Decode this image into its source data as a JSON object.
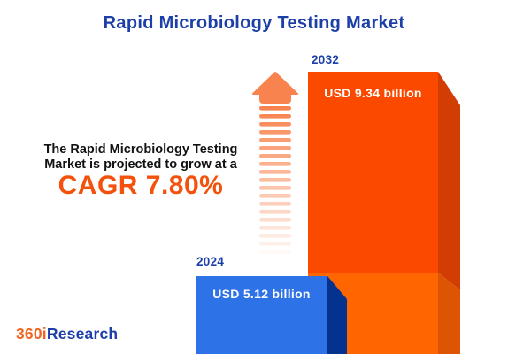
{
  "title": "Rapid Microbiology Testing Market",
  "annotation": {
    "line1": "The Rapid Microbiology Testing",
    "line2": "Market is projected to grow at a",
    "cagr_label": "CAGR 7.80%"
  },
  "chart_data": {
    "type": "bar",
    "title": "Rapid Microbiology Testing Market",
    "categories": [
      "2024",
      "2032"
    ],
    "values": [
      5.12,
      9.34
    ],
    "value_labels": [
      "USD 5.12 billion",
      "USD 9.34 billion"
    ],
    "unit": "USD billion",
    "cagr_percent": 7.8,
    "grid": false,
    "legend_position": "none",
    "colors": {
      "bar_2024_front": "#2e72e8",
      "bar_2024_side": "#05318f",
      "bar_2032_front": "#fb4a00",
      "bar_2032_side": "#d23d03",
      "bar_2032_reflection_front": "#ff6600",
      "bar_2032_reflection_side": "#de5405"
    }
  },
  "arrow": {
    "meaning": "growth-up-arrow",
    "color": "#f8834e"
  },
  "logo": {
    "part1": "360i",
    "part2": "Research"
  },
  "colors": {
    "accent_blue": "#1c3fa8",
    "accent_orange": "#f4510c",
    "text_dark": "#121212",
    "background": "#ffffff"
  }
}
